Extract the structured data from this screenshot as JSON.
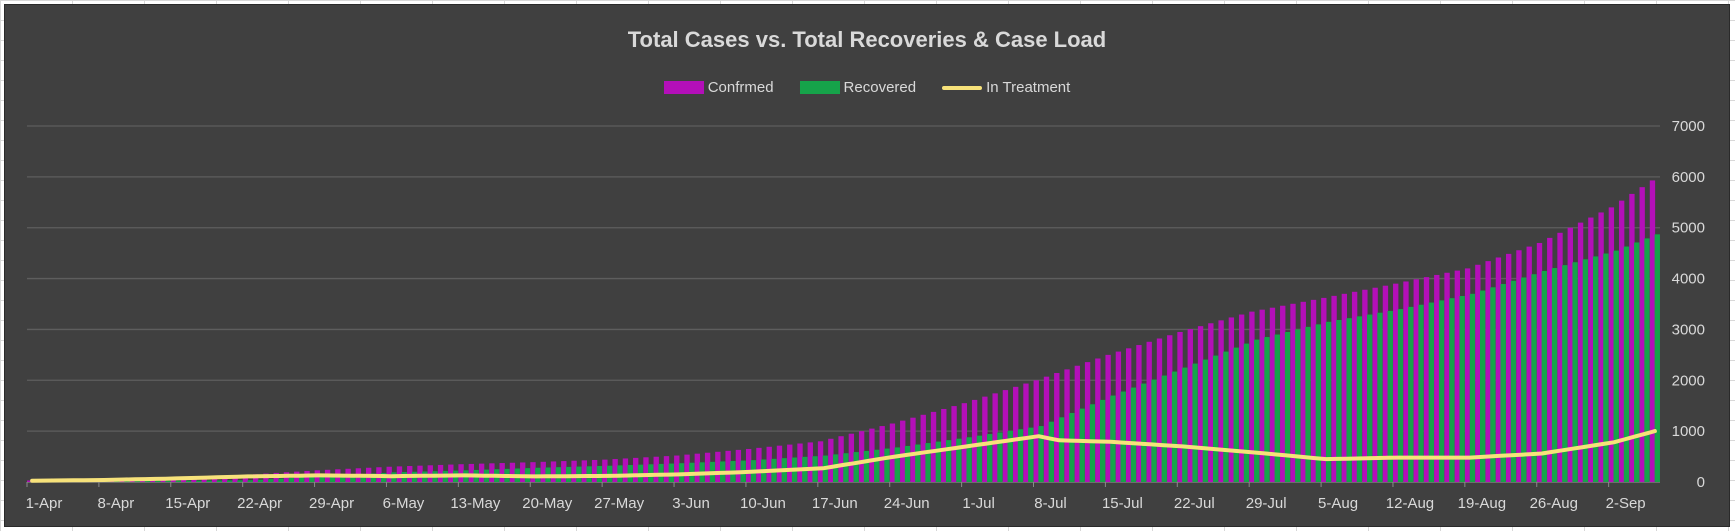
{
  "chart_data": {
    "type": "bar",
    "title": "Total Cases vs. Total Recoveries & Case Load",
    "legend_position": "top",
    "grid": true,
    "ylim": [
      0,
      7000
    ],
    "y_ticks": [
      "0",
      "1000",
      "2000",
      "3000",
      "4000",
      "5000",
      "6000",
      "7000"
    ],
    "x_tick_labels": [
      "1-Apr",
      "8-Apr",
      "15-Apr",
      "22-Apr",
      "29-Apr",
      "6-May",
      "13-May",
      "20-May",
      "27-May",
      "3-Jun",
      "10-Jun",
      "17-Jun",
      "24-Jun",
      "1-Jul",
      "8-Jul",
      "15-Jul",
      "22-Jul",
      "29-Jul",
      "5-Aug",
      "12-Aug",
      "19-Aug",
      "26-Aug",
      "2-Sep"
    ],
    "colors": {
      "confirmed": "#b40fb9",
      "recovered": "#16a34a",
      "in_treatment": "#f7e27a"
    },
    "x_start": "1-Apr",
    "x_end": "6-Sep",
    "series": [
      {
        "name": "Confrmed",
        "kind": "bar",
        "anchors": [
          [
            "1-Apr",
            30
          ],
          [
            "8-Apr",
            45
          ],
          [
            "15-Apr",
            90
          ],
          [
            "22-Apr",
            140
          ],
          [
            "29-Apr",
            230
          ],
          [
            "6-May",
            300
          ],
          [
            "13-May",
            350
          ],
          [
            "20-May",
            390
          ],
          [
            "27-May",
            440
          ],
          [
            "3-Jun",
            520
          ],
          [
            "10-Jun",
            650
          ],
          [
            "17-Jun",
            800
          ],
          [
            "24-Jun",
            1150
          ],
          [
            "1-Jul",
            1550
          ],
          [
            "8-Jul",
            2000
          ],
          [
            "15-Jul",
            2500
          ],
          [
            "22-Jul",
            2950
          ],
          [
            "29-Jul",
            3350
          ],
          [
            "5-Aug",
            3620
          ],
          [
            "12-Aug",
            3900
          ],
          [
            "19-Aug",
            4200
          ],
          [
            "26-Aug",
            4700
          ],
          [
            "2-Sep",
            5400
          ],
          [
            "6-Sep",
            5930
          ]
        ]
      },
      {
        "name": "Recovered",
        "kind": "bar",
        "anchors": [
          [
            "1-Apr",
            5
          ],
          [
            "8-Apr",
            10
          ],
          [
            "15-Apr",
            25
          ],
          [
            "22-Apr",
            35
          ],
          [
            "29-Apr",
            110
          ],
          [
            "6-May",
            190
          ],
          [
            "13-May",
            230
          ],
          [
            "20-May",
            280
          ],
          [
            "27-May",
            320
          ],
          [
            "3-Jun",
            370
          ],
          [
            "10-Jun",
            430
          ],
          [
            "17-Jun",
            520
          ],
          [
            "24-Jun",
            680
          ],
          [
            "1-Jul",
            880
          ],
          [
            "8-Jul",
            1100
          ],
          [
            "15-Jul",
            1700
          ],
          [
            "22-Jul",
            2250
          ],
          [
            "29-Jul",
            2800
          ],
          [
            "5-Aug",
            3150
          ],
          [
            "12-Aug",
            3400
          ],
          [
            "19-Aug",
            3700
          ],
          [
            "26-Aug",
            4150
          ],
          [
            "2-Sep",
            4550
          ],
          [
            "6-Sep",
            4870
          ]
        ]
      },
      {
        "name": "In Treatment",
        "kind": "line",
        "anchors": [
          [
            "1-Apr",
            25
          ],
          [
            "8-Apr",
            40
          ],
          [
            "15-Apr",
            70
          ],
          [
            "22-Apr",
            110
          ],
          [
            "29-Apr",
            130
          ],
          [
            "6-May",
            115
          ],
          [
            "13-May",
            130
          ],
          [
            "20-May",
            110
          ],
          [
            "27-May",
            120
          ],
          [
            "3-Jun",
            150
          ],
          [
            "10-Jun",
            200
          ],
          [
            "17-Jun",
            270
          ],
          [
            "24-Jun",
            500
          ],
          [
            "1-Jul",
            700
          ],
          [
            "8-Jul",
            900
          ],
          [
            "10-Jul",
            820
          ],
          [
            "15-Jul",
            790
          ],
          [
            "22-Jul",
            700
          ],
          [
            "29-Jul",
            580
          ],
          [
            "5-Aug",
            450
          ],
          [
            "12-Aug",
            480
          ],
          [
            "19-Aug",
            480
          ],
          [
            "26-Aug",
            560
          ],
          [
            "2-Sep",
            780
          ],
          [
            "6-Sep",
            1000
          ]
        ]
      }
    ]
  }
}
